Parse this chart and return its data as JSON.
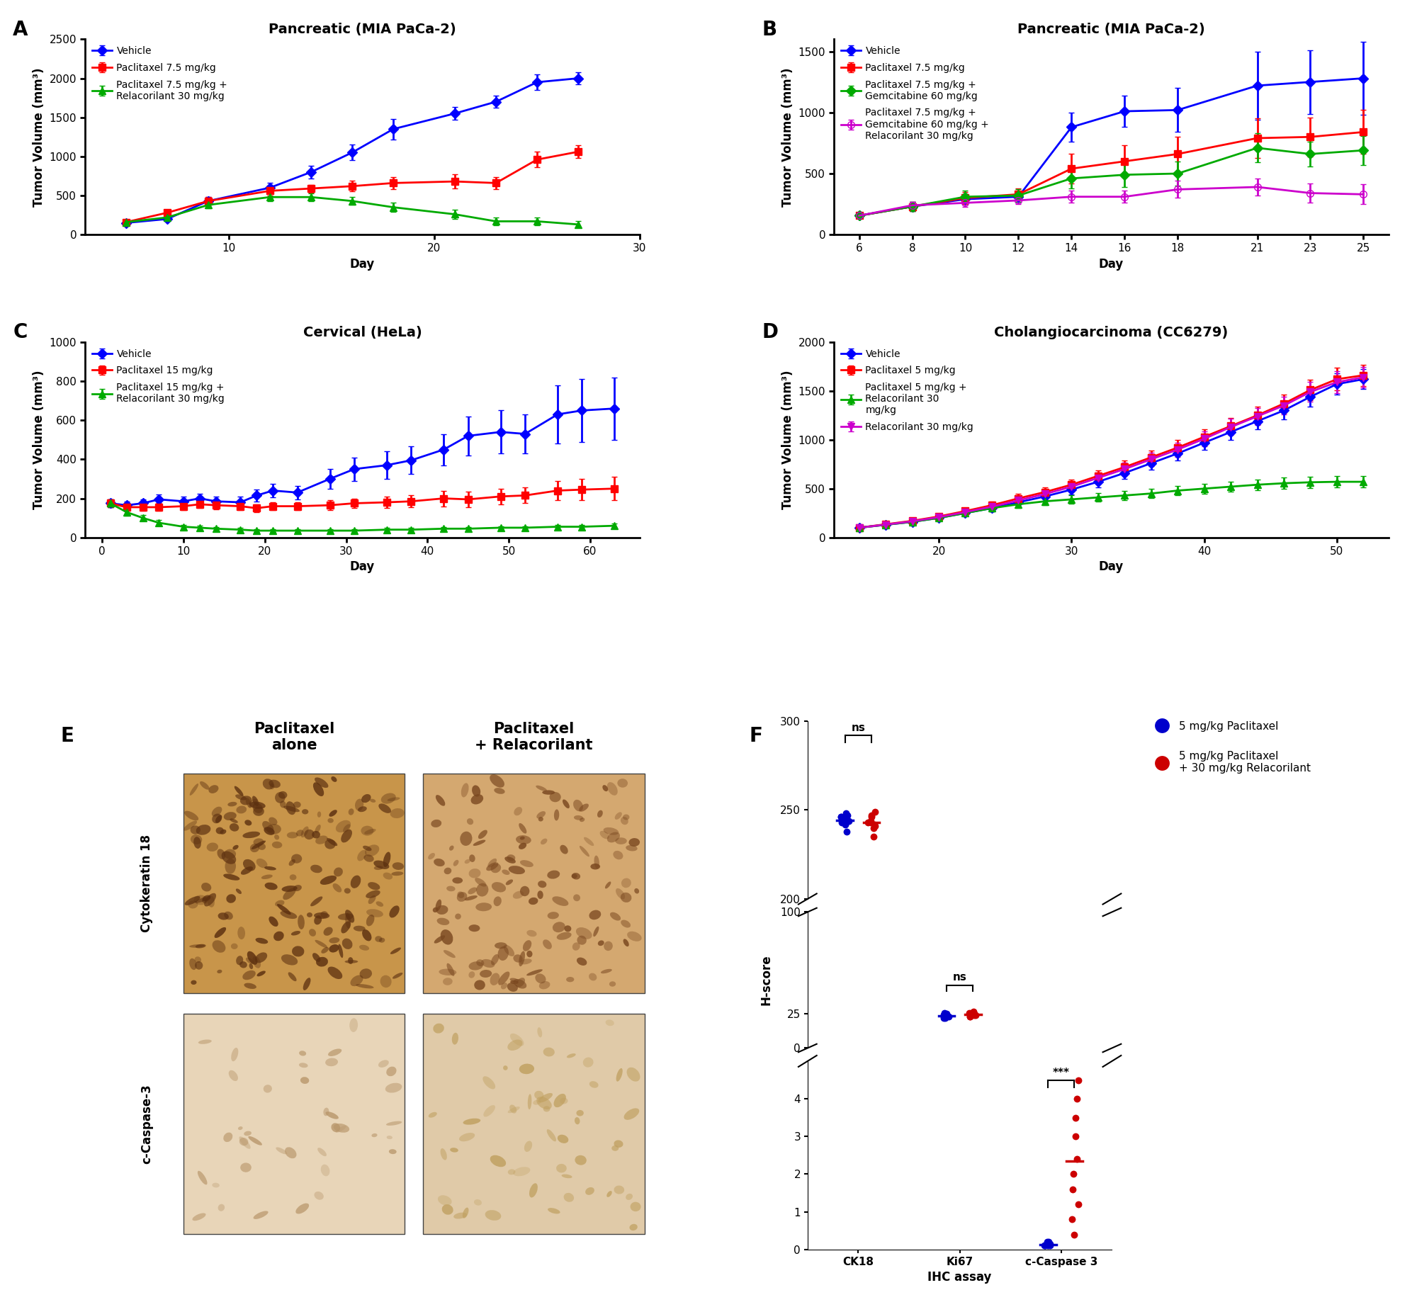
{
  "panel_A": {
    "title": "Pancreatic (MIA PaCa-2)",
    "xlabel": "Day",
    "ylabel": "Tumor Volume (mm³)",
    "ylim": [
      0,
      2500
    ],
    "yticks": [
      0,
      500,
      1000,
      1500,
      2000,
      2500
    ],
    "xlim": [
      3,
      30
    ],
    "xticks": [
      10,
      20,
      30
    ],
    "series": [
      {
        "label": "Vehicle",
        "color": "#0000FF",
        "marker": "D",
        "x": [
          5,
          7,
          9,
          12,
          14,
          16,
          18,
          21,
          23,
          25,
          27
        ],
        "y": [
          150,
          200,
          430,
          600,
          800,
          1050,
          1350,
          1550,
          1700,
          1950,
          2000
        ],
        "yerr": [
          20,
          30,
          50,
          60,
          80,
          100,
          130,
          80,
          80,
          100,
          80
        ]
      },
      {
        "label": "Paclitaxel 7.5 mg/kg",
        "color": "#FF0000",
        "marker": "s",
        "x": [
          5,
          7,
          9,
          12,
          14,
          16,
          18,
          21,
          23,
          25,
          27
        ],
        "y": [
          160,
          280,
          430,
          560,
          590,
          620,
          660,
          680,
          660,
          960,
          1060
        ],
        "yerr": [
          20,
          40,
          50,
          60,
          50,
          70,
          80,
          90,
          80,
          100,
          80
        ]
      },
      {
        "label": "Paclitaxel 7.5 mg/kg +\nRelacorilant 30 mg/kg",
        "color": "#00AA00",
        "marker": "^",
        "x": [
          5,
          7,
          9,
          12,
          14,
          16,
          18,
          21,
          23,
          25,
          27
        ],
        "y": [
          160,
          220,
          380,
          480,
          480,
          430,
          350,
          260,
          170,
          170,
          130
        ],
        "yerr": [
          20,
          30,
          40,
          50,
          50,
          50,
          60,
          60,
          50,
          50,
          40
        ]
      }
    ]
  },
  "panel_B": {
    "title": "Pancreatic (MIA PaCa-2)",
    "xlabel": "Day",
    "ylabel": "Tumor Volume (mm³)",
    "ylim": [
      0,
      1600
    ],
    "yticks": [
      0,
      500,
      1000,
      1500
    ],
    "xticks": [
      6,
      8,
      10,
      12,
      14,
      16,
      18,
      21,
      23,
      25
    ],
    "series": [
      {
        "label": "Vehicle",
        "color": "#0000FF",
        "marker": "D",
        "x": [
          6,
          8,
          10,
          12,
          14,
          16,
          18,
          21,
          23,
          25
        ],
        "y": [
          155,
          230,
          290,
          310,
          880,
          1010,
          1020,
          1220,
          1250,
          1280
        ],
        "yerr": [
          20,
          40,
          40,
          40,
          120,
          130,
          180,
          280,
          260,
          300
        ]
      },
      {
        "label": "Paclitaxel 7.5 mg/kg",
        "color": "#FF0000",
        "marker": "s",
        "x": [
          6,
          8,
          10,
          12,
          14,
          16,
          18,
          21,
          23,
          25
        ],
        "y": [
          155,
          230,
          300,
          330,
          540,
          600,
          660,
          790,
          800,
          840
        ],
        "yerr": [
          20,
          40,
          50,
          50,
          120,
          130,
          140,
          160,
          160,
          180
        ]
      },
      {
        "label": "Paclitaxel 7.5 mg/kg +\nGemcitabine 60 mg/kg",
        "color": "#00AA00",
        "marker": "D",
        "x": [
          6,
          8,
          10,
          12,
          14,
          16,
          18,
          21,
          23,
          25
        ],
        "y": [
          155,
          230,
          310,
          320,
          460,
          490,
          500,
          710,
          660,
          690
        ],
        "yerr": [
          20,
          40,
          50,
          50,
          80,
          100,
          100,
          120,
          100,
          120
        ]
      },
      {
        "label": "Paclitaxel 7.5 mg/kg +\nGemcitabine 60 mg/kg +\nRelacorilant 30 mg/kg",
        "color": "#CC00CC",
        "marker": "o",
        "filled": false,
        "x": [
          6,
          8,
          10,
          12,
          14,
          16,
          18,
          21,
          23,
          25
        ],
        "y": [
          155,
          240,
          260,
          280,
          310,
          310,
          370,
          390,
          340,
          330
        ],
        "yerr": [
          20,
          30,
          30,
          30,
          50,
          50,
          70,
          70,
          80,
          80
        ]
      }
    ]
  },
  "panel_C": {
    "title": "Cervical (HeLa)",
    "xlabel": "Day",
    "ylabel": "Tumor Volume (mm³)",
    "ylim": [
      0,
      1000
    ],
    "yticks": [
      0,
      200,
      400,
      600,
      800,
      1000
    ],
    "xticks": [
      0,
      10,
      20,
      30,
      40,
      50,
      60
    ],
    "series": [
      {
        "label": "Vehicle",
        "color": "#0000FF",
        "marker": "D",
        "x": [
          1,
          3,
          5,
          7,
          10,
          12,
          14,
          17,
          19,
          21,
          24,
          28,
          31,
          35,
          38,
          42,
          45,
          49,
          52,
          56,
          59,
          63
        ],
        "y": [
          175,
          165,
          175,
          195,
          185,
          200,
          185,
          180,
          215,
          240,
          230,
          300,
          350,
          370,
          395,
          450,
          520,
          540,
          530,
          630,
          650,
          660
        ],
        "yerr": [
          20,
          20,
          20,
          25,
          25,
          25,
          25,
          30,
          30,
          35,
          35,
          50,
          60,
          70,
          70,
          80,
          100,
          110,
          100,
          150,
          160,
          160
        ]
      },
      {
        "label": "Paclitaxel 15 mg/kg",
        "color": "#FF0000",
        "marker": "s",
        "x": [
          1,
          3,
          5,
          7,
          10,
          12,
          14,
          17,
          19,
          21,
          24,
          28,
          31,
          35,
          38,
          42,
          45,
          49,
          52,
          56,
          59,
          63
        ],
        "y": [
          175,
          155,
          155,
          155,
          160,
          170,
          165,
          160,
          150,
          160,
          160,
          165,
          175,
          180,
          185,
          200,
          195,
          210,
          215,
          240,
          245,
          250
        ],
        "yerr": [
          20,
          20,
          20,
          20,
          20,
          20,
          20,
          20,
          20,
          20,
          20,
          25,
          25,
          30,
          30,
          40,
          40,
          40,
          40,
          50,
          55,
          60
        ]
      },
      {
        "label": "Paclitaxel 15 mg/kg +\nRelacorilant 30 mg/kg",
        "color": "#00AA00",
        "marker": "^",
        "x": [
          1,
          3,
          5,
          7,
          10,
          12,
          14,
          17,
          19,
          21,
          24,
          28,
          31,
          35,
          38,
          42,
          45,
          49,
          52,
          56,
          59,
          63
        ],
        "y": [
          175,
          130,
          100,
          75,
          55,
          50,
          45,
          40,
          35,
          35,
          35,
          35,
          35,
          40,
          40,
          45,
          45,
          50,
          50,
          55,
          55,
          60
        ],
        "yerr": [
          20,
          20,
          15,
          15,
          10,
          10,
          10,
          8,
          8,
          8,
          8,
          8,
          8,
          8,
          8,
          8,
          8,
          8,
          8,
          10,
          10,
          10
        ]
      }
    ]
  },
  "panel_D": {
    "title": "Cholangiocarcinoma (CC6279)",
    "xlabel": "Day",
    "ylabel": "Tumor Volume (mm³)",
    "ylim": [
      0,
      2000
    ],
    "yticks": [
      0,
      500,
      1000,
      1500,
      2000
    ],
    "xticks": [
      20,
      30,
      40,
      50
    ],
    "series": [
      {
        "label": "Vehicle",
        "color": "#0000FF",
        "marker": "D",
        "x": [
          14,
          16,
          18,
          20,
          22,
          24,
          26,
          28,
          30,
          32,
          34,
          36,
          38,
          40,
          42,
          44,
          46,
          48,
          50,
          52
        ],
        "y": [
          100,
          130,
          160,
          200,
          250,
          300,
          360,
          420,
          490,
          570,
          660,
          760,
          860,
          970,
          1080,
          1190,
          1300,
          1440,
          1570,
          1620
        ],
        "yerr": [
          15,
          18,
          20,
          25,
          30,
          35,
          40,
          45,
          50,
          55,
          60,
          65,
          70,
          75,
          80,
          85,
          90,
          100,
          110,
          100
        ]
      },
      {
        "label": "Paclitaxel 5 mg/kg",
        "color": "#FF0000",
        "marker": "s",
        "x": [
          14,
          16,
          18,
          20,
          22,
          24,
          26,
          28,
          30,
          32,
          34,
          36,
          38,
          40,
          42,
          44,
          46,
          48,
          50,
          52
        ],
        "y": [
          100,
          135,
          170,
          215,
          270,
          330,
          400,
          465,
          540,
          630,
          720,
          820,
          920,
          1030,
          1140,
          1250,
          1370,
          1510,
          1620,
          1660
        ],
        "yerr": [
          15,
          18,
          22,
          28,
          33,
          38,
          45,
          50,
          55,
          60,
          65,
          70,
          75,
          80,
          85,
          90,
          95,
          105,
          115,
          110
        ]
      },
      {
        "label": "Paclitaxel 5 mg/kg +\nRelacorilant 30\nmg/kg",
        "color": "#00AA00",
        "marker": "^",
        "x": [
          14,
          16,
          18,
          20,
          22,
          24,
          26,
          28,
          30,
          32,
          34,
          36,
          38,
          40,
          42,
          44,
          46,
          48,
          50,
          52
        ],
        "y": [
          100,
          130,
          160,
          200,
          250,
          300,
          340,
          370,
          390,
          410,
          430,
          450,
          480,
          500,
          520,
          540,
          555,
          565,
          570,
          570
        ],
        "yerr": [
          15,
          18,
          20,
          25,
          30,
          35,
          38,
          40,
          42,
          44,
          46,
          48,
          50,
          52,
          54,
          56,
          58,
          60,
          60,
          58
        ]
      },
      {
        "label": "Relacorilant 30 mg/kg",
        "color": "#CC00CC",
        "marker": "v",
        "x": [
          14,
          16,
          18,
          20,
          22,
          24,
          26,
          28,
          30,
          32,
          34,
          36,
          38,
          40,
          42,
          44,
          46,
          48,
          50,
          52
        ],
        "y": [
          100,
          132,
          165,
          208,
          260,
          315,
          380,
          445,
          520,
          610,
          700,
          800,
          900,
          1010,
          1130,
          1240,
          1350,
          1490,
          1590,
          1640
        ],
        "yerr": [
          15,
          18,
          21,
          26,
          31,
          36,
          42,
          48,
          53,
          58,
          63,
          68,
          73,
          78,
          83,
          88,
          93,
          103,
          113,
          108
        ]
      }
    ]
  },
  "panel_F": {
    "xlabel": "IHC assay",
    "ylabel": "H-score",
    "groups": [
      "CK18",
      "Ki67",
      "c-Caspase 3"
    ],
    "blue_label": "5 mg/kg Paclitaxel",
    "red_label": "5 mg/kg Paclitaxel\n+ 30 mg/kg Relacorilant",
    "blue_color": "#0000CC",
    "red_color": "#CC0000",
    "data": {
      "CK18": {
        "blue": [
          238,
          242,
          244,
          246,
          247,
          248,
          245,
          243,
          244,
          246
        ],
        "red": [
          235,
          240,
          243,
          247,
          249,
          244,
          241,
          246,
          243,
          242
        ]
      },
      "Ki67": {
        "blue": [
          22,
          24,
          25,
          23,
          26,
          22,
          24,
          25,
          23,
          24
        ],
        "red": [
          23,
          25,
          26,
          24,
          27,
          23,
          25,
          26,
          24,
          25
        ]
      },
      "c-Caspase 3": {
        "blue": [
          0.1,
          0.15,
          0.1,
          0.2,
          0.15,
          0.1,
          0.2,
          0.15,
          0.1,
          0.12
        ],
        "red": [
          0.4,
          0.8,
          1.2,
          1.6,
          2.0,
          2.4,
          3.0,
          3.5,
          4.0,
          4.5
        ]
      }
    },
    "significance": {
      "CK18": "ns",
      "Ki67": "ns",
      "c-Caspase 3": "***"
    }
  },
  "font_sizes": {
    "title": 14,
    "label": 12,
    "tick": 11,
    "legend": 10,
    "panel_label": 20
  }
}
